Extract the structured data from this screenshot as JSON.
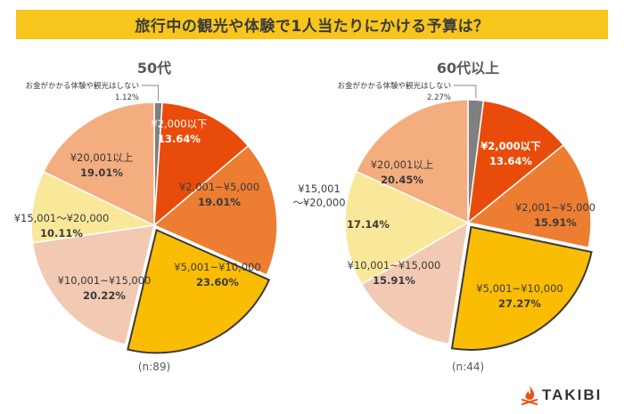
{
  "title": "旅行中の観光や体験で1人当たりにかける予算は？",
  "brand": {
    "name": "TAKIBI",
    "icon": "campfire-icon",
    "color": "#e8541c"
  },
  "chart_data": [
    {
      "type": "pie",
      "title": "50代",
      "note": "(n:89)",
      "slices": [
        {
          "label": "お金がかかる体験や観光はしない",
          "value": 1.12,
          "value_text": "1.12%",
          "color": "#7f7f7f"
        },
        {
          "label": "¥2,000以下",
          "value": 13.64,
          "value_text": "13.64%",
          "color": "#e94c0a"
        },
        {
          "label": "¥2,001~¥5,000",
          "value": 19.01,
          "value_text": "19.01%",
          "color": "#ec7d31"
        },
        {
          "label": "¥5,001~¥10,000",
          "value": 23.6,
          "value_text": "23.60%",
          "color": "#fbbc04",
          "highlight": true
        },
        {
          "label": "¥10,001~¥15,000",
          "value": 20.22,
          "value_text": "20.22%",
          "color": "#f2c9b2"
        },
        {
          "label": "¥15,001～¥20,000",
          "value": 10.11,
          "value_text": "10.11%",
          "color": "#fae89a"
        },
        {
          "label": "¥20,001以上",
          "value": 19.01,
          "value_text": "19.01%",
          "color": "#f3ad7e"
        }
      ]
    },
    {
      "type": "pie",
      "title": "60代以上",
      "note": "(n:44)",
      "slices": [
        {
          "label": "お金がかかる体験や観光はしない",
          "value": 2.27,
          "value_text": "2.27%",
          "color": "#7f7f7f"
        },
        {
          "label": "¥2,000以下",
          "value": 13.64,
          "value_text": "13.64%",
          "color": "#e94c0a"
        },
        {
          "label": "¥2,001~¥5,000",
          "value": 15.91,
          "value_text": "15.91%",
          "color": "#ec7d31"
        },
        {
          "label": "¥5,001~¥10,000",
          "value": 27.27,
          "value_text": "27.27%",
          "color": "#fbbc04",
          "highlight": true
        },
        {
          "label": "¥10,001~¥15,000",
          "value": 15.91,
          "value_text": "15.91%",
          "color": "#f2c9b2"
        },
        {
          "label": "¥15,001\n～¥20,000",
          "value": 17.14,
          "value_text": "17.14%",
          "color": "#fae89a"
        },
        {
          "label": "¥20,001以上",
          "value": 20.45,
          "value_text": "20.45%",
          "color": "#f3ad7e"
        }
      ]
    }
  ]
}
